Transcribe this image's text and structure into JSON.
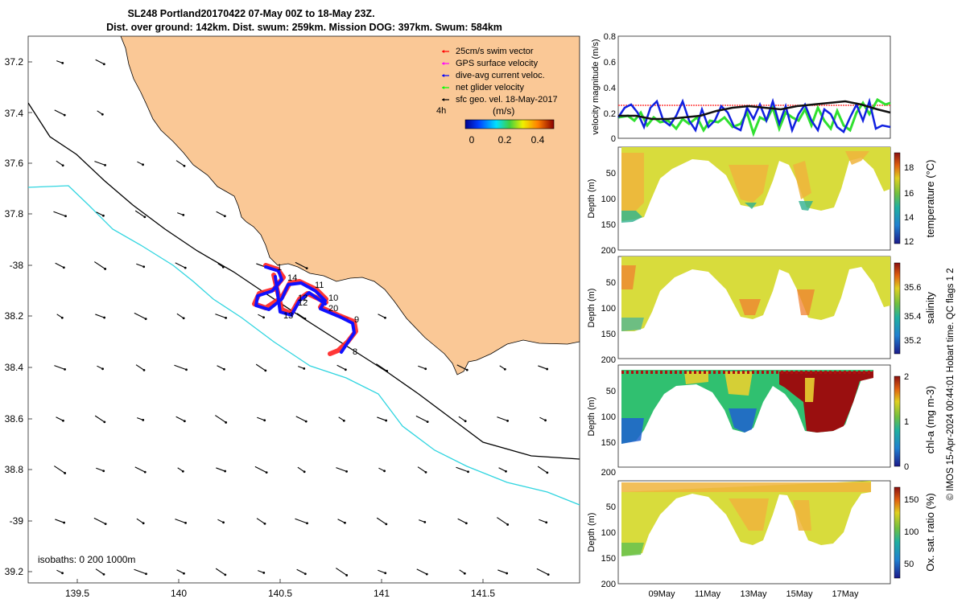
{
  "title_line1": "SL248 Portland20170422 07-May 00Z to 18-May 23Z.",
  "title_line2": "Dist. over ground: 142km. Dist. swum: 259km. Mission DOG: 397km. Swum: 584km",
  "map": {
    "lon_ticks": [
      "139.5",
      "140",
      "140.5",
      "141",
      "141.5"
    ],
    "lat_ticks": [
      "37.2",
      "37.4",
      "37.6",
      "37.8",
      "-38",
      "38.2",
      "38.4",
      "38.6",
      "38.8",
      "-39",
      "39.2"
    ],
    "legend": [
      {
        "label": "25cm/s swim vector",
        "color": "#ff0000"
      },
      {
        "label": "GPS surface velocity",
        "color": "#ff00ff"
      },
      {
        "label": "dive-avg current veloc.",
        "color": "#0000ff"
      },
      {
        "label": "net glider velocity",
        "color": "#00ff00"
      },
      {
        "label": "sfc geo. vel. 18-May-2017",
        "color": "#000000"
      }
    ],
    "legend_extra": "4h",
    "colorbar": {
      "label": "(m/s)",
      "ticks": [
        "0",
        "0.2",
        "0.4"
      ]
    },
    "isobath_label": "isobaths: 0   200  1000m",
    "waypoint_labels": [
      "1",
      "14",
      "11",
      "10",
      "12",
      "12",
      "20",
      "13",
      "9",
      "8"
    ],
    "colors": {
      "land": "#fac896",
      "isobath_200": "#000000",
      "isobath_1000": "#30d5e0"
    }
  },
  "velocity_panel": {
    "ylabel": "velocity magnitude (m/s)",
    "yticks": [
      "0",
      "0.2",
      "0.4",
      "0.6",
      "0.8"
    ]
  },
  "profiles": [
    {
      "id": "temperature",
      "label": "temperature (°C)",
      "cb_ticks": [
        "12",
        "14",
        "16",
        "18"
      ]
    },
    {
      "id": "salinity",
      "label": "salinity",
      "cb_ticks": [
        "35.2",
        "35.4",
        "35.6"
      ]
    },
    {
      "id": "chla",
      "label": "chl-a (mg m-3)",
      "cb_ticks": [
        "0",
        "1",
        "2"
      ]
    },
    {
      "id": "oxygen",
      "label": "Ox. sat. ratio (%)",
      "cb_ticks": [
        "50",
        "100",
        "150"
      ]
    }
  ],
  "depth_label": "Depth (m)",
  "depth_ticks": [
    "50",
    "100",
    "150",
    "200"
  ],
  "time_ticks": [
    "09May",
    "11May",
    "13May",
    "15May",
    "17May"
  ],
  "credit": "© IMOS 15-Apr-2024 00:44:01 Hobart time. QC flags 1  2"
}
